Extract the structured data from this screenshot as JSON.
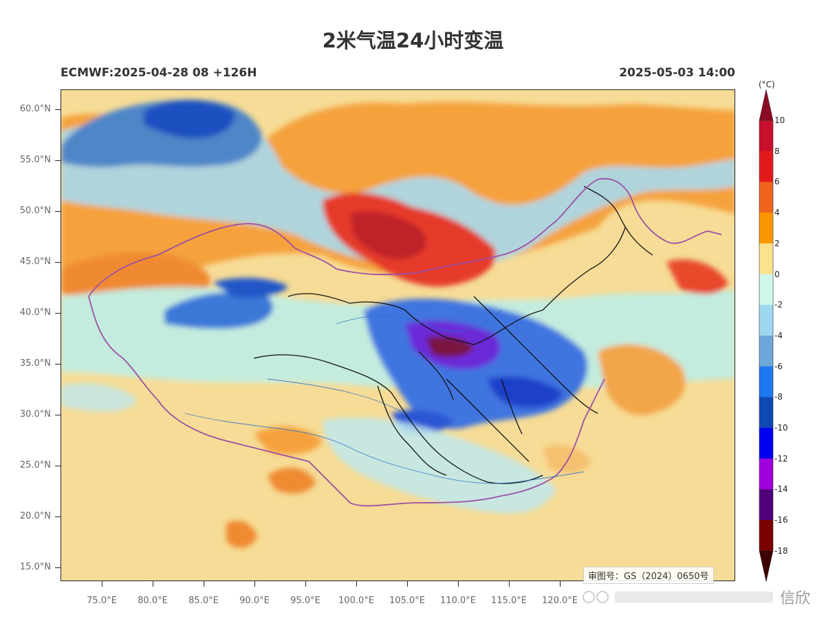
{
  "header": {
    "title": "2米气温24小时变温",
    "model_run": "ECMWF:2025-04-28 08 +126H",
    "valid_time": "2025-05-03 14:00"
  },
  "map": {
    "latitude_labels": [
      "60.0°N",
      "55.0°N",
      "50.0°N",
      "45.0°N",
      "40.0°N",
      "35.0°N",
      "30.0°N",
      "25.0°N",
      "20.0°N",
      "15.0°N"
    ],
    "longitude_labels": [
      "75.0°E",
      "80.0°E",
      "85.0°E",
      "90.0°E",
      "95.0°E",
      "100.0°E",
      "105.0°E",
      "110.0°E",
      "115.0°E",
      "120.0°E"
    ],
    "approval_number": "审图号：GS（2024）0650号"
  },
  "colorbar": {
    "unit": "(°C)",
    "labels": [
      "10",
      "8",
      "6",
      "4",
      "2",
      "0",
      "-2",
      "-4",
      "-6",
      "-8",
      "-10",
      "-12",
      "-14",
      "-16",
      "-18"
    ],
    "colors": [
      "#c8102e",
      "#e31a1c",
      "#f0641e",
      "#fa9600",
      "#fde28c",
      "#cff6ea",
      "#9ed8f0",
      "#6ea8da",
      "#1e78f0",
      "#0f4ab4",
      "#0000f0",
      "#a000dc",
      "#50007a",
      "#7a0000"
    ],
    "top_arrow_color": "#8b0a23",
    "bottom_arrow_color": "#3c0000"
  },
  "watermark": {
    "text": "信欣"
  }
}
